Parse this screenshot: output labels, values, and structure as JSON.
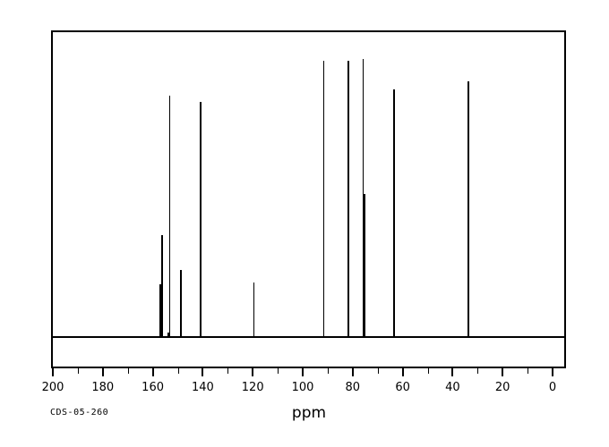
{
  "labels": {
    "sample_id": "CDS-05-260",
    "x_axis": "ppm"
  },
  "colors": {
    "background": "#ffffff",
    "line": "#000000"
  },
  "chart_data": {
    "type": "line",
    "subtype": "13C NMR stick spectrum",
    "title": "",
    "xlabel": "ppm",
    "ylabel": "",
    "x_axis": {
      "min": 0,
      "max": 200,
      "reversed": true,
      "major_ticks": [
        200,
        180,
        160,
        140,
        120,
        100,
        80,
        60,
        40,
        20,
        0
      ],
      "minor_ticks": [
        190,
        170,
        150,
        130,
        110,
        90,
        70,
        50,
        30,
        10
      ]
    },
    "y_axis": {
      "visible": false,
      "relative_intensity_max": 1.0
    },
    "grid": false,
    "legend": false,
    "annotations": {
      "sample_id": "CDS-05-260"
    },
    "peaks": [
      {
        "ppm": 156.8,
        "intensity": 0.192,
        "thick": true
      },
      {
        "ppm": 156.3,
        "intensity": 0.369,
        "thick": false
      },
      {
        "ppm": 153.8,
        "intensity": 0.019,
        "thick": false
      },
      {
        "ppm": 153.2,
        "intensity": 0.869,
        "thick": false
      },
      {
        "ppm": 148.8,
        "intensity": 0.244,
        "thick": false
      },
      {
        "ppm": 140.9,
        "intensity": 0.846,
        "thick": false
      },
      {
        "ppm": 119.6,
        "intensity": 0.199,
        "thick": false
      },
      {
        "ppm": 91.6,
        "intensity": 0.994,
        "thick": false
      },
      {
        "ppm": 81.7,
        "intensity": 0.994,
        "thick": false
      },
      {
        "ppm": 75.8,
        "intensity": 1.0,
        "thick": false
      },
      {
        "ppm": 75.2,
        "intensity": 0.516,
        "thick": true
      },
      {
        "ppm": 63.4,
        "intensity": 0.891,
        "thick": false
      },
      {
        "ppm": 33.7,
        "intensity": 0.92,
        "thick": false
      }
    ]
  }
}
